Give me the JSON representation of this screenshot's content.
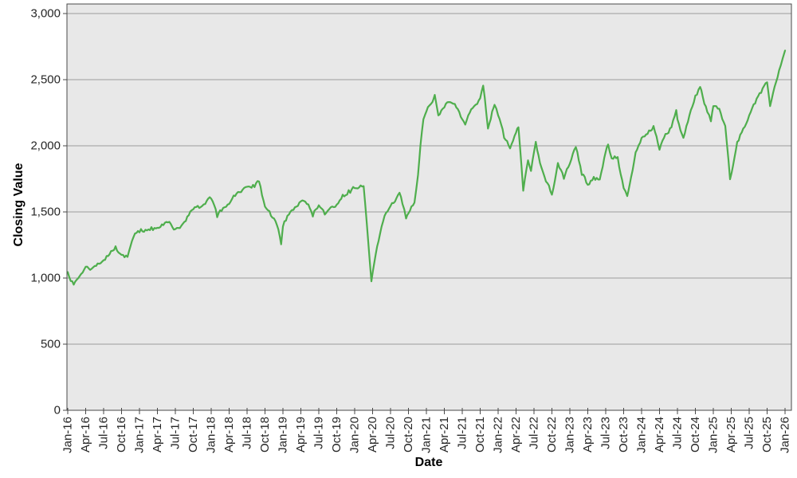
{
  "chart_data": {
    "type": "line",
    "title": "",
    "xlabel": "Date",
    "ylabel": "Closing Value",
    "legend": null,
    "grid": true,
    "x_tick_labels": [
      "Jan-16",
      "Apr-16",
      "Jul-16",
      "Oct-16",
      "Jan-17",
      "Apr-17",
      "Jul-17",
      "Oct-17",
      "Jan-18",
      "Apr-18",
      "Jul-18",
      "Oct-18",
      "Jan-19",
      "Apr-19",
      "Jul-19",
      "Oct-19",
      "Jan-20",
      "Apr-20",
      "Jul-20",
      "Oct-20",
      "Jan-21",
      "Apr-21",
      "Jul-21",
      "Oct-21",
      "Jan-22",
      "Apr-22",
      "Jul-22",
      "Oct-22",
      "Jan-23",
      "Apr-23",
      "Jul-23",
      "Oct-23",
      "Jan-24",
      "Apr-24",
      "Jul-24",
      "Oct-24",
      "Jan-25",
      "Apr-25",
      "Jul-25",
      "Oct-25",
      "Jan-26"
    ],
    "x_tick_interval_months": 3,
    "y_ticks": [
      0,
      500,
      1000,
      1500,
      2000,
      2500,
      3000
    ],
    "y_tick_labels": [
      "0",
      "500",
      "1,000",
      "1,500",
      "2,000",
      "2,500",
      "3,000"
    ],
    "ylim": [
      0,
      3000
    ],
    "xlim_months": [
      0,
      121
    ],
    "series": [
      {
        "name": "Closing Value",
        "color": "#4fae4d",
        "anchors_month_value": [
          [
            0,
            1045
          ],
          [
            1,
            950
          ],
          [
            2,
            1015
          ],
          [
            3,
            1085
          ],
          [
            4,
            1070
          ],
          [
            5,
            1110
          ],
          [
            6,
            1135
          ],
          [
            7,
            1180
          ],
          [
            8,
            1240
          ],
          [
            9,
            1175
          ],
          [
            10,
            1160
          ],
          [
            11,
            1310
          ],
          [
            12,
            1345
          ],
          [
            13,
            1365
          ],
          [
            14,
            1385
          ],
          [
            15,
            1380
          ],
          [
            16,
            1400
          ],
          [
            17,
            1425
          ],
          [
            18,
            1370
          ],
          [
            19,
            1395
          ],
          [
            20,
            1465
          ],
          [
            21,
            1520
          ],
          [
            22,
            1530
          ],
          [
            23,
            1560
          ],
          [
            24,
            1600
          ],
          [
            25,
            1460
          ],
          [
            26,
            1530
          ],
          [
            27,
            1560
          ],
          [
            28,
            1620
          ],
          [
            29,
            1650
          ],
          [
            30,
            1690
          ],
          [
            31,
            1705
          ],
          [
            32,
            1730
          ],
          [
            33,
            1540
          ],
          [
            34,
            1470
          ],
          [
            35,
            1400
          ],
          [
            35.7,
            1255
          ],
          [
            36,
            1390
          ],
          [
            37,
            1480
          ],
          [
            38,
            1535
          ],
          [
            39,
            1580
          ],
          [
            40,
            1560
          ],
          [
            41,
            1465
          ],
          [
            42,
            1550
          ],
          [
            43,
            1480
          ],
          [
            44,
            1535
          ],
          [
            45,
            1555
          ],
          [
            46,
            1630
          ],
          [
            47,
            1665
          ],
          [
            48,
            1680
          ],
          [
            49,
            1700
          ],
          [
            49.5,
            1695
          ],
          [
            50,
            1430
          ],
          [
            50.8,
            975
          ],
          [
            51.3,
            1120
          ],
          [
            52,
            1280
          ],
          [
            53,
            1470
          ],
          [
            54,
            1545
          ],
          [
            55,
            1605
          ],
          [
            55.5,
            1645
          ],
          [
            56,
            1560
          ],
          [
            56.6,
            1450
          ],
          [
            57,
            1490
          ],
          [
            58,
            1570
          ],
          [
            58.6,
            1780
          ],
          [
            59,
            2000
          ],
          [
            59.5,
            2200
          ],
          [
            60,
            2260
          ],
          [
            61,
            2330
          ],
          [
            61.4,
            2385
          ],
          [
            62,
            2230
          ],
          [
            63,
            2290
          ],
          [
            64,
            2330
          ],
          [
            65,
            2290
          ],
          [
            66,
            2200
          ],
          [
            66.5,
            2160
          ],
          [
            67,
            2230
          ],
          [
            68,
            2300
          ],
          [
            69,
            2360
          ],
          [
            69.5,
            2455
          ],
          [
            70.3,
            2130
          ],
          [
            71,
            2260
          ],
          [
            71.4,
            2310
          ],
          [
            72,
            2230
          ],
          [
            73,
            2060
          ],
          [
            74,
            1980
          ],
          [
            75,
            2100
          ],
          [
            75.4,
            2140
          ],
          [
            76.2,
            1660
          ],
          [
            77,
            1890
          ],
          [
            77.5,
            1810
          ],
          [
            78.3,
            2030
          ],
          [
            79,
            1870
          ],
          [
            80,
            1730
          ],
          [
            81,
            1630
          ],
          [
            82,
            1870
          ],
          [
            83,
            1750
          ],
          [
            84,
            1865
          ],
          [
            85,
            1990
          ],
          [
            86,
            1780
          ],
          [
            87,
            1705
          ],
          [
            88,
            1765
          ],
          [
            89,
            1745
          ],
          [
            90,
            1955
          ],
          [
            90.4,
            2010
          ],
          [
            91,
            1905
          ],
          [
            92,
            1915
          ],
          [
            93,
            1680
          ],
          [
            93.6,
            1620
          ],
          [
            94,
            1705
          ],
          [
            95,
            1950
          ],
          [
            96,
            2060
          ],
          [
            97,
            2090
          ],
          [
            98,
            2150
          ],
          [
            99,
            1970
          ],
          [
            100,
            2090
          ],
          [
            101,
            2140
          ],
          [
            101.8,
            2270
          ],
          [
            102,
            2200
          ],
          [
            103,
            2060
          ],
          [
            104,
            2230
          ],
          [
            105,
            2380
          ],
          [
            105.8,
            2445
          ],
          [
            106,
            2420
          ],
          [
            107,
            2255
          ],
          [
            107.6,
            2185
          ],
          [
            108,
            2300
          ],
          [
            109,
            2280
          ],
          [
            110,
            2150
          ],
          [
            110.8,
            1747
          ],
          [
            111.3,
            1850
          ],
          [
            112,
            2030
          ],
          [
            113,
            2130
          ],
          [
            114,
            2230
          ],
          [
            115,
            2320
          ],
          [
            116,
            2400
          ],
          [
            117,
            2480
          ],
          [
            117.5,
            2300
          ],
          [
            118,
            2400
          ],
          [
            119,
            2570
          ],
          [
            119.6,
            2660
          ],
          [
            120,
            2720
          ]
        ]
      }
    ],
    "style": {
      "plot_bg": "#e8e8e8",
      "outer_bg": "#ffffff",
      "grid_color": "#9c9c9c",
      "border_color": "#4a4a4a",
      "tick_color": "#4a4a4a",
      "tick_label_color": "#262626",
      "axis_title_color": "#000000",
      "line_width": 2.2,
      "tick_label_font_px": 15,
      "noise_amplitude": 25,
      "noise_seed": 7,
      "noise_step_months": 0.25
    }
  }
}
